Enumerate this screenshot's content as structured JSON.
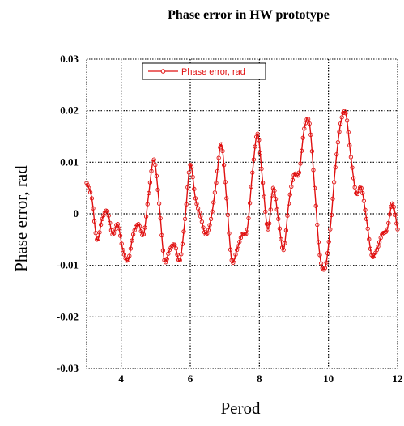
{
  "chart_data": {
    "type": "line",
    "title": "Phase error in HW prototype",
    "xlabel": "Perod",
    "ylabel": "Phase error, rad",
    "xlim": [
      3,
      12
    ],
    "ylim": [
      -0.03,
      0.03
    ],
    "x_ticks": [
      4,
      6,
      8,
      10,
      12
    ],
    "y_ticks": [
      -0.03,
      -0.02,
      -0.01,
      0,
      0.01,
      0.02,
      0.03
    ],
    "x_tick_labels": [
      "4",
      "6",
      "8",
      "10",
      "12"
    ],
    "y_tick_labels": [
      "-0.03",
      "-0.02",
      "-0.01",
      "0",
      "0.01",
      "0.02",
      "0.03"
    ],
    "grid": true,
    "grid_style": "dotted",
    "legend_position": "top-left",
    "series": [
      {
        "name": "Phase error, rad",
        "color": "#e01010",
        "marker": "circle",
        "x": [
          3.0,
          3.15,
          3.3,
          3.45,
          3.6,
          3.75,
          3.9,
          4.05,
          4.2,
          4.35,
          4.5,
          4.65,
          4.8,
          4.95,
          5.1,
          5.25,
          5.4,
          5.55,
          5.7,
          5.85,
          6.0,
          6.15,
          6.3,
          6.45,
          6.6,
          6.75,
          6.9,
          7.05,
          7.2,
          7.35,
          7.5,
          7.65,
          7.8,
          7.95,
          8.1,
          8.25,
          8.4,
          8.55,
          8.7,
          8.85,
          9.0,
          9.15,
          9.3,
          9.45,
          9.6,
          9.75,
          9.9,
          10.05,
          10.2,
          10.35,
          10.5,
          10.65,
          10.8,
          10.95,
          11.1,
          11.25,
          11.4,
          11.55,
          11.7,
          11.85,
          12.0
        ],
        "y": [
          0.006,
          0.003,
          -0.005,
          -0.001,
          0.0005,
          -0.004,
          -0.002,
          -0.007,
          -0.009,
          -0.004,
          -0.002,
          -0.004,
          0.004,
          0.0105,
          0.002,
          -0.009,
          -0.007,
          -0.006,
          -0.009,
          -0.001,
          0.0095,
          0.003,
          -0.0005,
          -0.004,
          -0.001,
          0.006,
          0.0135,
          0.003,
          -0.009,
          -0.007,
          -0.004,
          -0.003,
          0.008,
          0.0155,
          0.006,
          -0.003,
          0.005,
          -0.001,
          -0.007,
          0.002,
          0.0075,
          0.008,
          0.0165,
          0.0175,
          0.005,
          -0.008,
          -0.0105,
          -0.003,
          0.009,
          0.0175,
          0.0195,
          0.011,
          0.004,
          0.005,
          -0.001,
          -0.008,
          -0.007,
          -0.004,
          -0.003,
          0.002,
          -0.003
        ]
      }
    ]
  }
}
